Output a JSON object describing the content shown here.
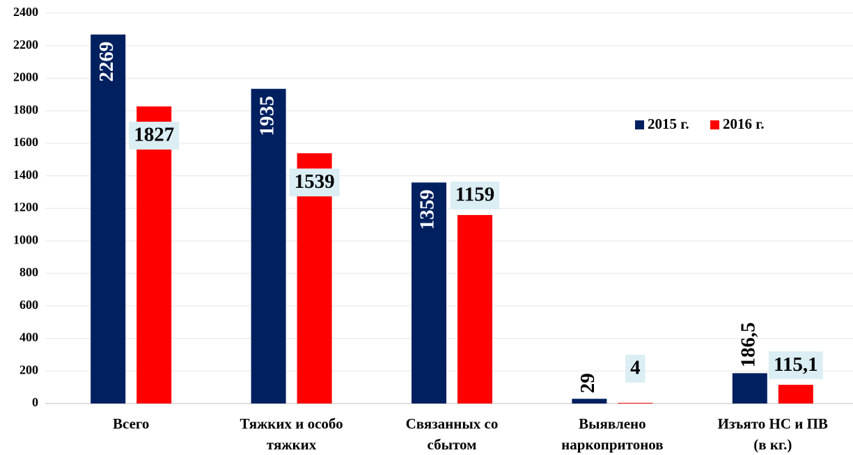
{
  "chart_data": {
    "type": "bar",
    "categories": [
      [
        "Всего"
      ],
      [
        "Тяжких и особо",
        "тяжких"
      ],
      [
        "Связанных со",
        "сбытом"
      ],
      [
        "Выявлено",
        "наркопритонов"
      ],
      [
        "Изъято НС и ПВ",
        "(в кг.)"
      ]
    ],
    "series": [
      {
        "name": "2015 г.",
        "color": "#002060",
        "values": [
          2269,
          1935,
          1359,
          29,
          186.5
        ],
        "value_labels": [
          "2269",
          "1935",
          "1359",
          "29",
          "186,5"
        ]
      },
      {
        "name": "2016 г.",
        "color": "#ff0000",
        "values": [
          1827,
          1539,
          1159,
          4,
          115.1
        ],
        "value_labels": [
          "1827",
          "1539",
          "1159",
          "4",
          "115,1"
        ]
      }
    ],
    "ylim": [
      0,
      2400
    ],
    "yticks": [
      0,
      200,
      400,
      600,
      800,
      1000,
      1200,
      1400,
      1600,
      1800,
      2000,
      2200,
      2400
    ],
    "grid": true,
    "legend": "upper right"
  }
}
